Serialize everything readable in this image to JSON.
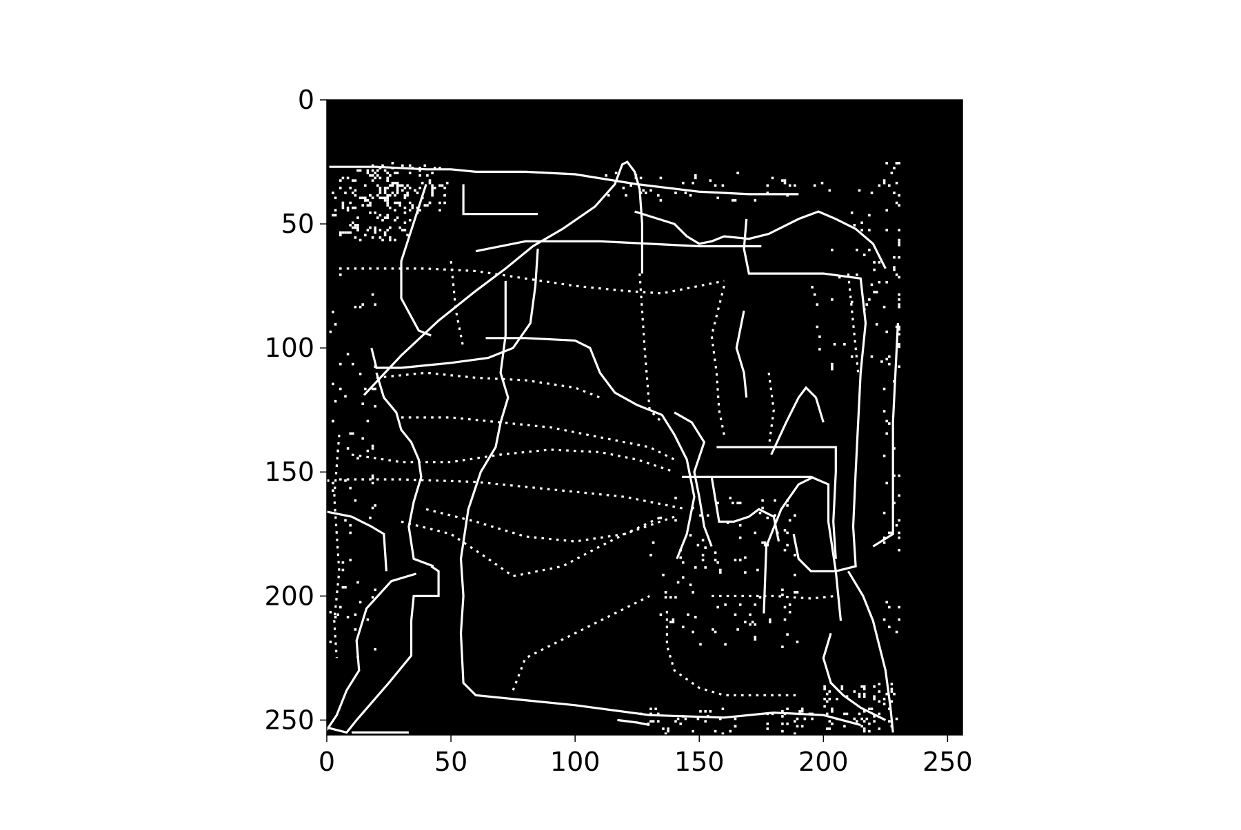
{
  "chart_data": {
    "type": "heatmap",
    "title": "",
    "xlabel": "",
    "ylabel": "",
    "image_shape": [
      256,
      256
    ],
    "xlim": [
      0,
      256
    ],
    "ylim": [
      256,
      0
    ],
    "y_axis_inverted": true,
    "colormap": "gray (binary image: white lines on black background)",
    "background_color": "#000000",
    "foreground_color": "#ffffff",
    "content_extent": {
      "x_range": [
        0,
        231
      ],
      "y_range": [
        25,
        256
      ]
    },
    "xticks": [
      0,
      50,
      100,
      150,
      200,
      250
    ],
    "yticks": [
      0,
      50,
      100,
      150,
      200,
      250
    ],
    "xtick_labels": [
      "0",
      "50",
      "100",
      "150",
      "200",
      "250"
    ],
    "ytick_labels": [
      "0",
      "50",
      "100",
      "150",
      "200",
      "250"
    ],
    "grid": false,
    "legend": "none",
    "paths_solid": [
      [
        [
          15,
          119
        ],
        [
          30,
          103
        ],
        [
          45,
          89
        ],
        [
          60,
          77
        ],
        [
          72,
          68
        ],
        [
          83,
          59
        ],
        [
          95,
          52
        ],
        [
          108,
          43
        ],
        [
          116,
          34
        ],
        [
          119,
          26
        ],
        [
          121,
          25
        ],
        [
          124,
          29
        ],
        [
          126,
          36
        ],
        [
          127,
          50
        ],
        [
          127,
          70
        ]
      ],
      [
        [
          1,
          27
        ],
        [
          20,
          27
        ],
        [
          40,
          28
        ],
        [
          50,
          28
        ],
        [
          60,
          29
        ],
        [
          80,
          29
        ],
        [
          100,
          30
        ],
        [
          125,
          34
        ],
        [
          150,
          37
        ],
        [
          170,
          38
        ],
        [
          190,
          38
        ]
      ],
      [
        [
          60,
          61
        ],
        [
          80,
          57
        ],
        [
          110,
          57
        ],
        [
          150,
          59
        ],
        [
          175,
          59
        ]
      ],
      [
        [
          55,
          34
        ],
        [
          55,
          46
        ],
        [
          70,
          46
        ],
        [
          85,
          46
        ]
      ],
      [
        [
          40,
          34
        ],
        [
          30,
          65
        ],
        [
          30,
          80
        ],
        [
          37,
          93
        ],
        [
          42,
          95
        ]
      ],
      [
        [
          18,
          100
        ],
        [
          20,
          108
        ],
        [
          30,
          108
        ],
        [
          50,
          106
        ],
        [
          65,
          104
        ],
        [
          75,
          100
        ],
        [
          82,
          90
        ],
        [
          84,
          75
        ],
        [
          85,
          60
        ]
      ],
      [
        [
          20,
          110
        ],
        [
          23,
          120
        ],
        [
          28,
          126
        ],
        [
          30,
          133
        ],
        [
          34,
          138
        ],
        [
          37,
          145
        ],
        [
          38,
          152
        ],
        [
          35,
          162
        ],
        [
          33,
          172
        ],
        [
          35,
          185
        ],
        [
          43,
          188
        ]
      ],
      [
        [
          42,
          188
        ],
        [
          45,
          190
        ],
        [
          45,
          200
        ],
        [
          35,
          200
        ],
        [
          34,
          210
        ],
        [
          34,
          224
        ],
        [
          25,
          235
        ],
        [
          12,
          250
        ],
        [
          8,
          255
        ],
        [
          0,
          253
        ]
      ],
      [
        [
          36,
          191
        ],
        [
          26,
          194
        ],
        [
          16,
          205
        ],
        [
          12,
          218
        ],
        [
          13,
          230
        ],
        [
          8,
          238
        ],
        [
          4,
          248
        ],
        [
          0,
          254
        ]
      ],
      [
        [
          72,
          73
        ],
        [
          72,
          95
        ],
        [
          70,
          110
        ],
        [
          73,
          120
        ],
        [
          70,
          130
        ],
        [
          68,
          140
        ],
        [
          62,
          150
        ],
        [
          57,
          165
        ],
        [
          54,
          185
        ],
        [
          55,
          200
        ],
        [
          54,
          215
        ],
        [
          55,
          235
        ],
        [
          60,
          240
        ],
        [
          80,
          242
        ],
        [
          100,
          244
        ],
        [
          130,
          248
        ],
        [
          160,
          249
        ],
        [
          180,
          247
        ],
        [
          200,
          248
        ],
        [
          215,
          252
        ]
      ],
      [
        [
          64,
          96
        ],
        [
          80,
          96
        ],
        [
          100,
          97
        ],
        [
          106,
          100
        ],
        [
          110,
          110
        ],
        [
          116,
          118
        ],
        [
          125,
          123
        ],
        [
          135,
          127
        ],
        [
          140,
          135
        ],
        [
          145,
          145
        ],
        [
          148,
          160
        ],
        [
          145,
          175
        ],
        [
          141,
          185
        ]
      ],
      [
        [
          140,
          126
        ],
        [
          147,
          130
        ],
        [
          152,
          138
        ],
        [
          148,
          150
        ],
        [
          150,
          160
        ],
        [
          152,
          172
        ],
        [
          155,
          180
        ]
      ],
      [
        [
          124,
          45
        ],
        [
          140,
          50
        ],
        [
          145,
          55
        ],
        [
          150,
          58
        ],
        [
          155,
          57
        ],
        [
          160,
          55
        ],
        [
          170,
          56
        ],
        [
          178,
          54
        ],
        [
          190,
          48
        ],
        [
          198,
          45
        ],
        [
          205,
          48
        ],
        [
          213,
          52
        ],
        [
          220,
          58
        ],
        [
          225,
          68
        ]
      ],
      [
        [
          169,
          48
        ],
        [
          168,
          60
        ],
        [
          170,
          70
        ],
        [
          185,
          70
        ],
        [
          200,
          70
        ],
        [
          215,
          72
        ],
        [
          217,
          90
        ],
        [
          215,
          110
        ],
        [
          214,
          130
        ],
        [
          213,
          150
        ],
        [
          212,
          172
        ],
        [
          213,
          188
        ],
        [
          205,
          190
        ],
        [
          195,
          190
        ],
        [
          190,
          185
        ],
        [
          188,
          175
        ]
      ],
      [
        [
          143,
          152
        ],
        [
          160,
          152
        ],
        [
          180,
          152
        ],
        [
          195,
          152
        ],
        [
          202,
          155
        ],
        [
          202,
          170
        ],
        [
          205,
          190
        ],
        [
          207,
          210
        ]
      ],
      [
        [
          155,
          152
        ],
        [
          158,
          170
        ],
        [
          164,
          170
        ],
        [
          170,
          168
        ],
        [
          174,
          165
        ],
        [
          180,
          168
        ],
        [
          182,
          178
        ]
      ],
      [
        [
          176,
          207
        ],
        [
          177,
          180
        ],
        [
          183,
          165
        ],
        [
          190,
          155
        ],
        [
          196,
          152
        ]
      ],
      [
        [
          179,
          143
        ],
        [
          185,
          130
        ],
        [
          190,
          120
        ],
        [
          193,
          116
        ],
        [
          197,
          120
        ],
        [
          200,
          130
        ]
      ],
      [
        [
          157,
          140
        ],
        [
          175,
          140
        ],
        [
          195,
          140
        ],
        [
          205,
          140
        ],
        [
          205,
          150
        ],
        [
          204,
          170
        ],
        [
          205,
          185
        ]
      ],
      [
        [
          210,
          190
        ],
        [
          216,
          200
        ],
        [
          220,
          210
        ],
        [
          225,
          230
        ],
        [
          227,
          245
        ],
        [
          228,
          255
        ]
      ],
      [
        [
          203,
          215
        ],
        [
          200,
          225
        ],
        [
          203,
          235
        ],
        [
          208,
          240
        ],
        [
          215,
          245
        ],
        [
          225,
          250
        ]
      ],
      [
        [
          230,
          90
        ],
        [
          229,
          110
        ],
        [
          228,
          130
        ],
        [
          228,
          150
        ],
        [
          228,
          175
        ],
        [
          220,
          180
        ]
      ],
      [
        [
          0,
          166
        ],
        [
          10,
          168
        ],
        [
          18,
          172
        ],
        [
          23,
          175
        ],
        [
          24,
          190
        ]
      ],
      [
        [
          168,
          85
        ],
        [
          165,
          100
        ],
        [
          168,
          110
        ],
        [
          169,
          120
        ]
      ],
      [
        [
          117,
          250
        ],
        [
          125,
          251
        ],
        [
          130,
          252
        ]
      ],
      [
        [
          10,
          255
        ],
        [
          20,
          255
        ],
        [
          33,
          255
        ]
      ]
    ],
    "paths_dotted": [
      [
        [
          5,
          68
        ],
        [
          20,
          68
        ],
        [
          40,
          68
        ],
        [
          60,
          69
        ],
        [
          80,
          72
        ],
        [
          100,
          75
        ],
        [
          120,
          77
        ],
        [
          135,
          78
        ],
        [
          150,
          75
        ],
        [
          160,
          73
        ]
      ],
      [
        [
          20,
          112
        ],
        [
          40,
          110
        ],
        [
          60,
          112
        ],
        [
          80,
          113
        ],
        [
          100,
          116
        ],
        [
          110,
          120
        ]
      ],
      [
        [
          30,
          128
        ],
        [
          50,
          128
        ],
        [
          70,
          130
        ],
        [
          90,
          132
        ],
        [
          110,
          136
        ],
        [
          130,
          140
        ],
        [
          140,
          145
        ]
      ],
      [
        [
          10,
          143
        ],
        [
          30,
          146
        ],
        [
          50,
          146
        ],
        [
          70,
          143
        ],
        [
          90,
          141
        ],
        [
          110,
          142
        ],
        [
          125,
          145
        ],
        [
          140,
          150
        ]
      ],
      [
        [
          5,
          153
        ],
        [
          30,
          153
        ],
        [
          60,
          154
        ],
        [
          90,
          157
        ],
        [
          120,
          160
        ],
        [
          145,
          165
        ]
      ],
      [
        [
          30,
          170
        ],
        [
          50,
          175
        ],
        [
          65,
          185
        ],
        [
          75,
          192
        ],
        [
          85,
          190
        ],
        [
          95,
          188
        ],
        [
          110,
          180
        ],
        [
          120,
          175
        ],
        [
          135,
          168
        ]
      ],
      [
        [
          40,
          165
        ],
        [
          60,
          170
        ],
        [
          80,
          176
        ],
        [
          100,
          178
        ],
        [
          120,
          175
        ],
        [
          140,
          168
        ]
      ],
      [
        [
          75,
          238
        ],
        [
          80,
          225
        ],
        [
          90,
          220
        ],
        [
          100,
          215
        ],
        [
          110,
          210
        ],
        [
          120,
          205
        ],
        [
          130,
          200
        ]
      ],
      [
        [
          5,
          135
        ],
        [
          3,
          160
        ],
        [
          5,
          190
        ],
        [
          3,
          210
        ],
        [
          4,
          225
        ]
      ],
      [
        [
          126,
          70
        ],
        [
          128,
          100
        ],
        [
          130,
          125
        ],
        [
          135,
          130
        ]
      ],
      [
        [
          137,
          206
        ],
        [
          137,
          220
        ],
        [
          140,
          230
        ],
        [
          150,
          237
        ],
        [
          160,
          240
        ],
        [
          175,
          240
        ],
        [
          190,
          240
        ]
      ],
      [
        [
          155,
          200
        ],
        [
          165,
          200
        ],
        [
          180,
          200
        ],
        [
          195,
          201
        ],
        [
          205,
          200
        ]
      ],
      [
        [
          160,
          75
        ],
        [
          155,
          95
        ],
        [
          157,
          110
        ],
        [
          158,
          125
        ],
        [
          160,
          135
        ]
      ],
      [
        [
          210,
          70
        ],
        [
          212,
          90
        ],
        [
          214,
          110
        ]
      ],
      [
        [
          50,
          65
        ],
        [
          52,
          85
        ],
        [
          55,
          100
        ]
      ],
      [
        [
          178,
          110
        ],
        [
          180,
          125
        ],
        [
          178,
          140
        ]
      ]
    ],
    "noise_clusters": [
      {
        "center": [
          18,
          42
        ],
        "spread": [
          16,
          14
        ],
        "count": 130
      },
      {
        "center": [
          32,
          35
        ],
        "spread": [
          16,
          10
        ],
        "count": 90
      },
      {
        "center": [
          160,
          190
        ],
        "spread": [
          30,
          30
        ],
        "count": 110
      },
      {
        "center": [
          215,
          245
        ],
        "spread": [
          15,
          10
        ],
        "count": 70
      },
      {
        "center": [
          150,
          35
        ],
        "spread": [
          40,
          6
        ],
        "count": 40
      },
      {
        "center": [
          215,
          70
        ],
        "spread": [
          20,
          40
        ],
        "count": 60
      },
      {
        "center": [
          10,
          150
        ],
        "spread": [
          10,
          80
        ],
        "count": 70
      },
      {
        "center": [
          228,
          120
        ],
        "spread": [
          4,
          100
        ],
        "count": 60
      },
      {
        "center": [
          145,
          250
        ],
        "spread": [
          20,
          5
        ],
        "count": 35
      },
      {
        "center": [
          185,
          250
        ],
        "spread": [
          10,
          5
        ],
        "count": 25
      }
    ]
  }
}
